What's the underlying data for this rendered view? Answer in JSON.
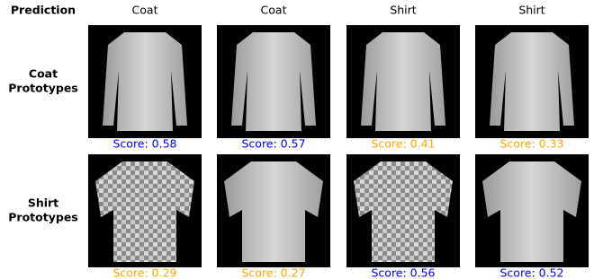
{
  "header": {
    "title": "Prediction",
    "columns": [
      "Coat",
      "Coat",
      "Shirt",
      "Shirt"
    ]
  },
  "rows": [
    {
      "label": [
        "Coat",
        "Prototypes"
      ],
      "cells": [
        {
          "score": "Score: 0.58",
          "color": "#0000ff"
        },
        {
          "score": "Score: 0.57",
          "color": "#0000ff"
        },
        {
          "score": "Score: 0.41",
          "color": "#ffa500"
        },
        {
          "score": "Score: 0.33",
          "color": "#ffa500"
        }
      ]
    },
    {
      "label": [
        "Shirt",
        "Prototypes"
      ],
      "cells": [
        {
          "score": "Score: 0.29",
          "color": "#ffa500"
        },
        {
          "score": "Score: 0.27",
          "color": "#ffa500"
        },
        {
          "score": "Score: 0.56",
          "color": "#0000ff"
        },
        {
          "score": "Score: 0.52",
          "color": "#0000ff"
        }
      ]
    }
  ]
}
